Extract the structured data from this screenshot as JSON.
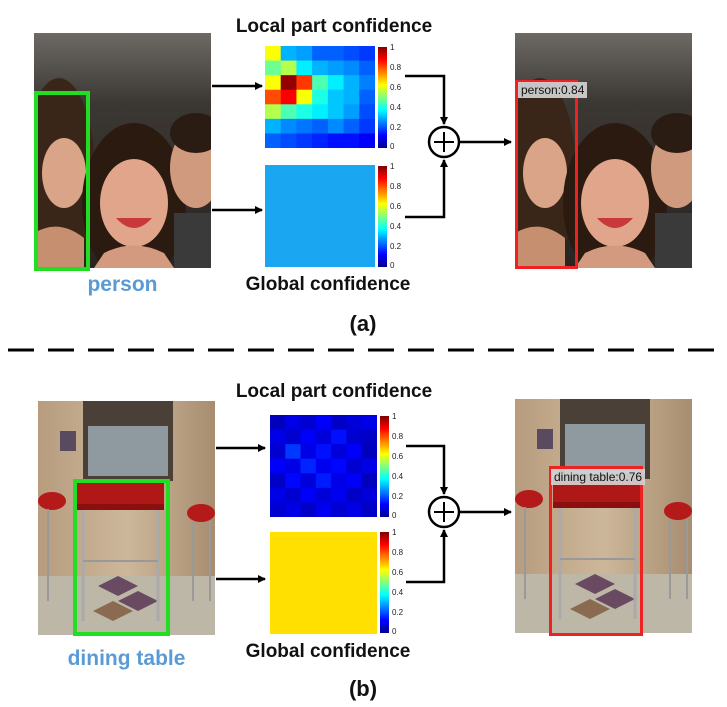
{
  "panel_a": {
    "local_title": "Local part confidence",
    "global_title": "Global confidence",
    "class_label": "person",
    "detection_label": "person:0.84",
    "panel_label": "(a)",
    "colorbar_ticks": [
      "1",
      "0.8",
      "0.6",
      "0.4",
      "0.2",
      "0"
    ],
    "global_fill": "#1aa6f0",
    "input_box_color": "#22dd22",
    "output_box_color": "#ee2222"
  },
  "panel_b": {
    "local_title": "Local part confidence",
    "global_title": "Global confidence",
    "class_label": "dining table",
    "detection_label": "dining table:0.76",
    "panel_label": "(b)",
    "colorbar_ticks": [
      "1",
      "0.8",
      "0.6",
      "0.4",
      "0.2",
      "0"
    ],
    "global_fill": "#ffe000",
    "input_box_color": "#22dd22",
    "output_box_color": "#ee2222"
  },
  "fusion_symbol": "+",
  "heatmap_a": [
    [
      0.62,
      0.3,
      0.28,
      0.22,
      0.22,
      0.2,
      0.18
    ],
    [
      0.48,
      0.55,
      0.36,
      0.3,
      0.28,
      0.26,
      0.22
    ],
    [
      0.62,
      0.98,
      0.82,
      0.45,
      0.36,
      0.3,
      0.25
    ],
    [
      0.8,
      0.88,
      0.62,
      0.4,
      0.32,
      0.3,
      0.22
    ],
    [
      0.55,
      0.45,
      0.4,
      0.36,
      0.32,
      0.28,
      0.2
    ],
    [
      0.3,
      0.26,
      0.24,
      0.22,
      0.26,
      0.22,
      0.18
    ],
    [
      0.22,
      0.2,
      0.18,
      0.16,
      0.14,
      0.14,
      0.12
    ]
  ],
  "heatmap_b": [
    [
      0.06,
      0.1,
      0.08,
      0.12,
      0.07,
      0.09,
      0.1
    ],
    [
      0.1,
      0.08,
      0.12,
      0.09,
      0.14,
      0.08,
      0.07
    ],
    [
      0.08,
      0.18,
      0.1,
      0.14,
      0.09,
      0.12,
      0.06
    ],
    [
      0.12,
      0.1,
      0.16,
      0.11,
      0.13,
      0.08,
      0.1
    ],
    [
      0.07,
      0.13,
      0.09,
      0.15,
      0.1,
      0.12,
      0.06
    ],
    [
      0.1,
      0.08,
      0.12,
      0.09,
      0.11,
      0.07,
      0.09
    ],
    [
      0.08,
      0.1,
      0.07,
      0.11,
      0.08,
      0.1,
      0.07
    ]
  ]
}
